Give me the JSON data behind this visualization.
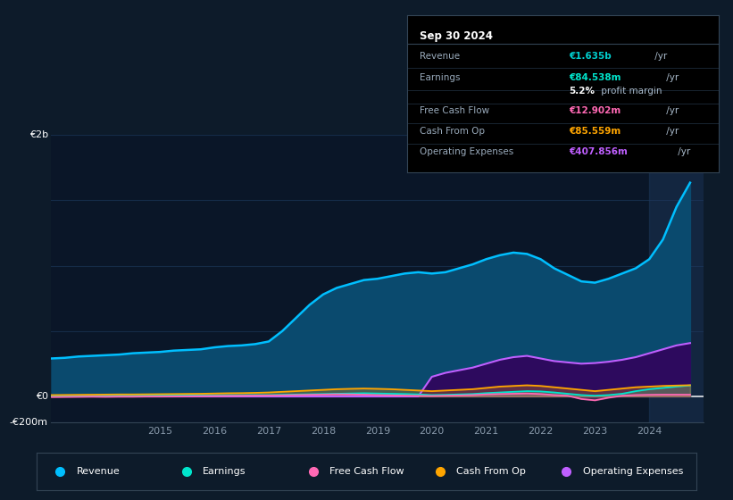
{
  "bg_color": "#0d1b2a",
  "panel_bg": "#0a1628",
  "grid_color": "#1e3a5f",
  "title_box": {
    "date": "Sep 30 2024",
    "rows": [
      {
        "label": "Revenue",
        "value": "€1.635b",
        "suffix": " /yr",
        "value_color": "#00cfcf"
      },
      {
        "label": "Earnings",
        "value": "€84.538m",
        "suffix": " /yr",
        "value_color": "#00e5cc"
      },
      {
        "label": "",
        "value": "5.2%",
        "suffix": " profit margin",
        "value_color": "#ffffff",
        "bold_part": true
      },
      {
        "label": "Free Cash Flow",
        "value": "€12.902m",
        "suffix": " /yr",
        "value_color": "#ff69b4"
      },
      {
        "label": "Cash From Op",
        "value": "€85.559m",
        "suffix": " /yr",
        "value_color": "#ffa500"
      },
      {
        "label": "Operating Expenses",
        "value": "€407.856m",
        "suffix": " /yr",
        "value_color": "#bf5fff"
      }
    ]
  },
  "years": [
    2013.0,
    2013.25,
    2013.5,
    2013.75,
    2014.0,
    2014.25,
    2014.5,
    2014.75,
    2015.0,
    2015.25,
    2015.5,
    2015.75,
    2016.0,
    2016.25,
    2016.5,
    2016.75,
    2017.0,
    2017.25,
    2017.5,
    2017.75,
    2018.0,
    2018.25,
    2018.5,
    2018.75,
    2019.0,
    2019.25,
    2019.5,
    2019.75,
    2020.0,
    2020.25,
    2020.5,
    2020.75,
    2021.0,
    2021.25,
    2021.5,
    2021.75,
    2022.0,
    2022.25,
    2022.5,
    2022.75,
    2023.0,
    2023.25,
    2023.5,
    2023.75,
    2024.0,
    2024.25,
    2024.5,
    2024.75
  ],
  "revenue": [
    290,
    295,
    305,
    310,
    315,
    320,
    330,
    335,
    340,
    350,
    355,
    360,
    375,
    385,
    390,
    400,
    420,
    500,
    600,
    700,
    780,
    830,
    860,
    890,
    900,
    920,
    940,
    950,
    940,
    950,
    980,
    1010,
    1050,
    1080,
    1100,
    1090,
    1050,
    980,
    930,
    880,
    870,
    900,
    940,
    980,
    1050,
    1200,
    1450,
    1635
  ],
  "earnings": [
    5,
    6,
    5,
    6,
    6,
    7,
    6,
    7,
    7,
    8,
    8,
    8,
    8,
    9,
    9,
    10,
    10,
    12,
    14,
    16,
    18,
    20,
    22,
    24,
    22,
    20,
    18,
    15,
    10,
    12,
    15,
    18,
    25,
    30,
    35,
    40,
    38,
    30,
    20,
    10,
    5,
    10,
    20,
    40,
    55,
    65,
    75,
    84.538
  ],
  "free_cash_flow": [
    -5,
    -4,
    -3,
    -2,
    -3,
    -2,
    -2,
    -1,
    -1,
    0,
    1,
    2,
    3,
    4,
    5,
    6,
    7,
    8,
    10,
    12,
    14,
    16,
    15,
    13,
    10,
    8,
    6,
    4,
    3,
    5,
    7,
    10,
    15,
    18,
    20,
    22,
    18,
    10,
    5,
    -20,
    -30,
    -10,
    5,
    10,
    12,
    13,
    13,
    12.902
  ],
  "cash_from_op": [
    10,
    11,
    12,
    13,
    14,
    15,
    15,
    16,
    17,
    18,
    19,
    20,
    22,
    24,
    25,
    27,
    30,
    35,
    40,
    45,
    50,
    55,
    58,
    60,
    58,
    55,
    50,
    45,
    40,
    45,
    50,
    55,
    65,
    75,
    80,
    85,
    80,
    70,
    60,
    50,
    40,
    50,
    60,
    70,
    75,
    80,
    83,
    85.559
  ],
  "operating_expenses": [
    0,
    0,
    0,
    0,
    0,
    0,
    0,
    0,
    0,
    0,
    0,
    0,
    0,
    0,
    0,
    0,
    0,
    0,
    0,
    0,
    0,
    0,
    0,
    0,
    0,
    0,
    0,
    0,
    150,
    180,
    200,
    220,
    250,
    280,
    300,
    310,
    290,
    270,
    260,
    250,
    255,
    265,
    280,
    300,
    330,
    360,
    390,
    407.856
  ],
  "revenue_color": "#00bfff",
  "revenue_fill": "#0a4a6e",
  "earnings_color": "#00e5cc",
  "free_cash_flow_color": "#ff69b4",
  "cash_from_op_color": "#ffa500",
  "op_expenses_color": "#bf5fff",
  "op_expenses_fill": "#2d0a5e",
  "ylim": [
    -200,
    2000
  ],
  "xlim": [
    2013.0,
    2025.0
  ],
  "yticks_grid": [
    -200,
    0,
    500,
    1000,
    1500,
    2000
  ],
  "xtick_years": [
    2015,
    2016,
    2017,
    2018,
    2019,
    2020,
    2021,
    2022,
    2023,
    2024
  ],
  "legend_items": [
    {
      "label": "Revenue",
      "color": "#00bfff"
    },
    {
      "label": "Earnings",
      "color": "#00e5cc"
    },
    {
      "label": "Free Cash Flow",
      "color": "#ff69b4"
    },
    {
      "label": "Cash From Op",
      "color": "#ffa500"
    },
    {
      "label": "Operating Expenses",
      "color": "#bf5fff"
    }
  ]
}
